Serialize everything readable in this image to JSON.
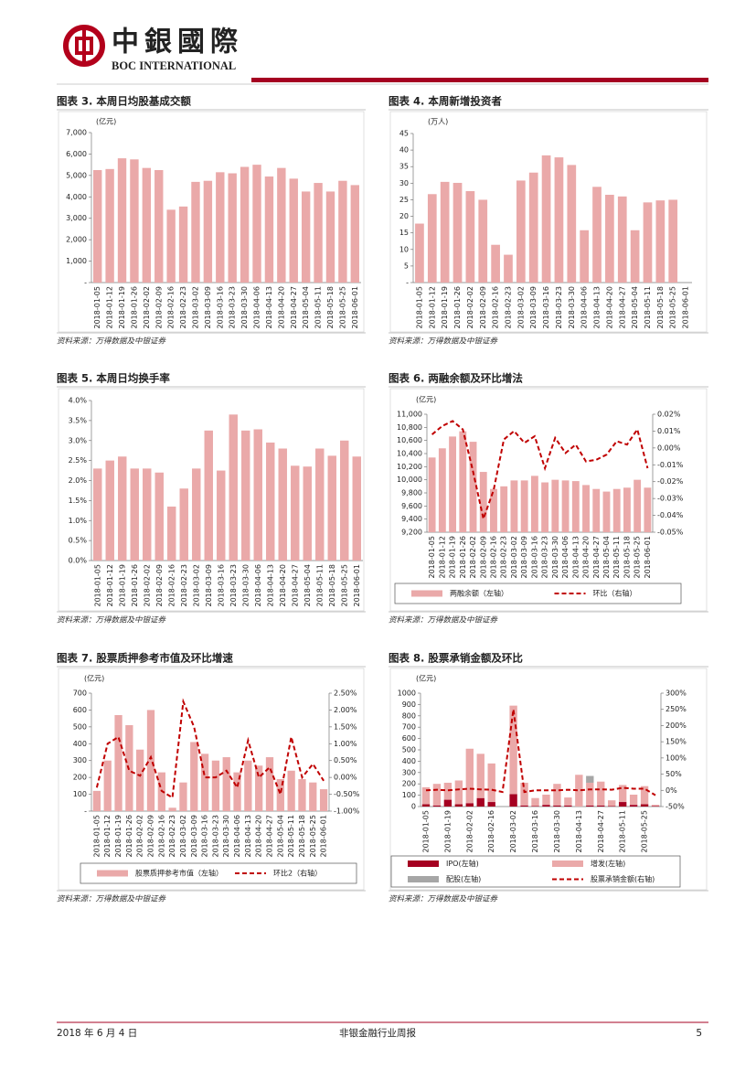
{
  "header": {
    "logo_cn": "中銀國際",
    "logo_en": "BOC INTERNATIONAL"
  },
  "chart_data": [
    {
      "type": "bar",
      "title": "图表 3. 本周日均股基成交额",
      "y_label": "(亿元)",
      "source": "资料来源：万得数据及中银证券",
      "categories": [
        "2018-01-05",
        "2018-01-12",
        "2018-01-19",
        "2018-01-26",
        "2018-02-02",
        "2018-02-09",
        "2018-02-16",
        "2018-02-23",
        "2018-03-02",
        "2018-03-09",
        "2018-03-16",
        "2018-03-23",
        "2018-03-30",
        "2018-04-06",
        "2018-04-13",
        "2018-04-20",
        "2018-04-27",
        "2018-05-04",
        "2018-05-11",
        "2018-05-18",
        "2018-05-25",
        "2018-06-01"
      ],
      "values": [
        5250,
        5300,
        5800,
        5750,
        5350,
        5250,
        3400,
        3550,
        4700,
        4750,
        5150,
        5100,
        5400,
        5500,
        4950,
        5350,
        4850,
        4250,
        4650,
        4250,
        4750,
        4550
      ],
      "color": "#eaa9a9",
      "ylim": [
        0,
        7000
      ],
      "yticks": [
        {
          "value": 0,
          "label": "-"
        },
        {
          "value": 1000,
          "label": "1,000"
        },
        {
          "value": 2000,
          "label": "2,000"
        },
        {
          "value": 3000,
          "label": "3,000"
        },
        {
          "value": 4000,
          "label": "4,000"
        },
        {
          "value": 5000,
          "label": "5,000"
        },
        {
          "value": 6000,
          "label": "6,000"
        },
        {
          "value": 7000,
          "label": "7,000"
        }
      ]
    },
    {
      "type": "bar",
      "title": "图表 4. 本周新增投资者",
      "y_label": "(万人)",
      "source": "资料来源：万得数据及中银证券",
      "categories": [
        "2018-01-05",
        "2018-01-12",
        "2018-01-19",
        "2018-01-26",
        "2018-02-02",
        "2018-02-09",
        "2018-02-16",
        "2018-02-23",
        "2018-03-02",
        "2018-03-09",
        "2018-03-16",
        "2018-03-23",
        "2018-03-30",
        "2018-04-06",
        "2018-04-13",
        "2018-04-20",
        "2018-04-27",
        "2018-05-04",
        "2018-05-11",
        "2018-05-18",
        "2018-05-25",
        "2018-06-01"
      ],
      "values": [
        17.8,
        26.7,
        30.4,
        30.1,
        27.6,
        25.0,
        11.4,
        8.4,
        30.8,
        33.2,
        38.4,
        37.8,
        35.5,
        15.8,
        28.9,
        26.5,
        26.0,
        15.8,
        24.2,
        24.8,
        25.0,
        null
      ],
      "color": "#eaa9a9",
      "ylim": [
        0,
        45
      ],
      "yticks": [
        {
          "value": 0,
          "label": "-"
        },
        5,
        10,
        15,
        20,
        25,
        30,
        35,
        40,
        45
      ]
    },
    {
      "type": "bar",
      "title": "图表 5. 本周日均换手率",
      "source": "资料来源：万得数据及中银证券",
      "categories": [
        "2018-01-05",
        "2018-01-12",
        "2018-01-19",
        "2018-01-26",
        "2018-02-02",
        "2018-02-09",
        "2018-02-16",
        "2018-02-23",
        "2018-03-02",
        "2018-03-09",
        "2018-03-16",
        "2018-03-23",
        "2018-03-30",
        "2018-04-06",
        "2018-04-13",
        "2018-04-20",
        "2018-04-27",
        "2018-05-04",
        "2018-05-11",
        "2018-05-18",
        "2018-05-25",
        "2018-06-01"
      ],
      "values": [
        2.3,
        2.5,
        2.6,
        2.3,
        2.3,
        2.2,
        1.35,
        1.8,
        2.3,
        3.25,
        2.25,
        3.65,
        3.25,
        3.28,
        2.95,
        2.8,
        2.37,
        2.35,
        2.8,
        2.62,
        3.0,
        2.6
      ],
      "color": "#eaa9a9",
      "ylim": [
        0,
        4
      ],
      "yticks": [
        {
          "value": 0,
          "label": "0.0%"
        },
        {
          "value": 0.5,
          "label": "0.5%"
        },
        {
          "value": 1,
          "label": "1.0%"
        },
        {
          "value": 1.5,
          "label": "1.5%"
        },
        {
          "value": 2,
          "label": "2.0%"
        },
        {
          "value": 2.5,
          "label": "2.5%"
        },
        {
          "value": 3,
          "label": "3.0%"
        },
        {
          "value": 3.5,
          "label": "3.5%"
        },
        {
          "value": 4,
          "label": "4.0%"
        }
      ]
    },
    {
      "type": "combo",
      "title": "图表 6. 两融余额及环比增法",
      "y_label": "(亿元)",
      "source": "资料来源：万得数据及中银证券",
      "legend": true,
      "categories": [
        "2018-01-05",
        "2018-01-12",
        "2018-01-19",
        "2018-01-26",
        "2018-02-02",
        "2018-02-09",
        "2018-02-16",
        "2018-02-23",
        "2018-03-02",
        "2018-03-09",
        "2018-03-16",
        "2018-03-23",
        "2018-03-30",
        "2018-04-06",
        "2018-04-13",
        "2018-04-20",
        "2018-04-27",
        "2018-05-04",
        "2018-05-11",
        "2018-05-18",
        "2018-05-25",
        "2018-06-01"
      ],
      "series": [
        {
          "name": "两融余额（左轴）",
          "color": "#eaa9a9",
          "kind": "bar",
          "values": [
            10340,
            10480,
            10660,
            10740,
            10580,
            10120,
            9860,
            9900,
            9990,
            9990,
            10060,
            9960,
            10000,
            9990,
            9980,
            9920,
            9860,
            9820,
            9860,
            9880,
            10000,
            9880
          ]
        },
        {
          "name": "环比（右轴）",
          "color": "#c00000",
          "kind": "line",
          "axis": "y2",
          "values": [
            0.008,
            0.013,
            0.016,
            0.011,
            -0.014,
            -0.042,
            -0.025,
            0.005,
            0.01,
            0.003,
            0.007,
            -0.012,
            0.006,
            -0.003,
            0.002,
            -0.008,
            -0.007,
            -0.004,
            0.004,
            0.002,
            0.011,
            -0.012
          ]
        }
      ],
      "ylim": [
        9200,
        11000
      ],
      "yticks": [
        {
          "value": 9200,
          "label": "9,200"
        },
        {
          "value": 9400,
          "label": "9,400"
        },
        {
          "value": 9600,
          "label": "9,600"
        },
        {
          "value": 9800,
          "label": "9,800"
        },
        {
          "value": 10000,
          "label": "10,000"
        },
        {
          "value": 10200,
          "label": "10,200"
        },
        {
          "value": 10400,
          "label": "10,400"
        },
        {
          "value": 10600,
          "label": "10,600"
        },
        {
          "value": 10800,
          "label": "10,800"
        },
        {
          "value": 11000,
          "label": "11,000"
        }
      ],
      "y2lim": [
        -0.05,
        0.02
      ],
      "y2ticks": [
        {
          "value": -0.05,
          "label": "-0.05%"
        },
        {
          "value": -0.04,
          "label": "-0.04%"
        },
        {
          "value": -0.03,
          "label": "-0.03%"
        },
        {
          "value": -0.02,
          "label": "-0.02%"
        },
        {
          "value": -0.01,
          "label": "-0.01%"
        },
        {
          "value": 0,
          "label": "0.00%"
        },
        {
          "value": 0.01,
          "label": "0.01%"
        },
        {
          "value": 0.02,
          "label": "0.02%"
        }
      ]
    },
    {
      "type": "combo",
      "title": "图表 7. 股票质押参考市值及环比增速",
      "y_label": "(亿元)",
      "source": "资料来源：万得数据及中银证券",
      "legend": true,
      "categories": [
        "2018-01-05",
        "2018-01-12",
        "2018-01-19",
        "2018-01-26",
        "2018-02-02",
        "2018-02-09",
        "2018-02-16",
        "2018-02-23",
        "2018-03-02",
        "2018-03-09",
        "2018-03-16",
        "2018-03-23",
        "2018-03-30",
        "2018-04-06",
        "2018-04-13",
        "2018-04-20",
        "2018-04-27",
        "2018-05-04",
        "2018-05-11",
        "2018-05-18",
        "2018-05-25",
        "2018-06-01"
      ],
      "series": [
        {
          "name": "股票质押参考市值（左轴）",
          "color": "#eaa9a9",
          "kind": "bar",
          "values": [
            120,
            300,
            570,
            510,
            365,
            600,
            230,
            20,
            170,
            410,
            340,
            300,
            320,
            230,
            300,
            270,
            320,
            190,
            240,
            190,
            170,
            130
          ]
        },
        {
          "name": "环比2（右轴）",
          "color": "#c00000",
          "kind": "line",
          "axis": "y2",
          "values": [
            -0.3,
            1.0,
            1.2,
            0.2,
            0.05,
            0.6,
            -0.4,
            -0.6,
            2.25,
            1.5,
            0.0,
            0.0,
            0.2,
            -0.3,
            1.1,
            0.0,
            0.3,
            -0.5,
            1.2,
            0.0,
            0.4,
            -0.1
          ]
        }
      ],
      "ylim": [
        0,
        700
      ],
      "yticks": [
        {
          "value": 0,
          "label": "-"
        },
        100,
        200,
        300,
        400,
        500,
        600,
        700
      ],
      "y2lim": [
        -1,
        2.5
      ],
      "y2ticks": [
        {
          "value": -1,
          "label": "-1.00%"
        },
        {
          "value": -0.5,
          "label": "-0.50%"
        },
        {
          "value": 0,
          "label": "0.00%"
        },
        {
          "value": 0.5,
          "label": "0.50%"
        },
        {
          "value": 1,
          "label": "1.00%"
        },
        {
          "value": 1.5,
          "label": "1.50%"
        },
        {
          "value": 2,
          "label": "2.00%"
        },
        {
          "value": 2.5,
          "label": "2.50%"
        }
      ]
    },
    {
      "type": "combo",
      "title": "图表 8. 股票承销金额及环比",
      "y_label": "(亿元)",
      "source": "资料来源：万得数据及中银证券",
      "legend": true,
      "stacked": true,
      "categories": [
        "2018-01-05",
        null,
        "2018-01-19",
        null,
        "2018-02-02",
        null,
        "2018-02-16",
        null,
        "2018-03-02",
        null,
        "2018-03-16",
        null,
        "2018-03-30",
        null,
        "2018-04-13",
        null,
        "2018-04-27",
        null,
        "2018-05-11",
        null,
        "2018-05-25",
        null
      ],
      "series": [
        {
          "name": "IPO(左轴)",
          "color": "#a50021",
          "kind": "bar",
          "values": [
            20,
            10,
            60,
            20,
            30,
            75,
            40,
            0,
            110,
            10,
            5,
            15,
            10,
            10,
            0,
            10,
            10,
            5,
            40,
            15,
            20,
            5
          ]
        },
        {
          "name": "增发(左轴)",
          "color": "#eaa9a9",
          "kind": "bar",
          "values": [
            150,
            190,
            150,
            210,
            480,
            390,
            340,
            0,
            780,
            200,
            70,
            90,
            190,
            70,
            280,
            200,
            210,
            50,
            150,
            90,
            160,
            10
          ]
        },
        {
          "name": "配股(左轴)",
          "color": "#a6a6a6",
          "kind": "bar",
          "values": [
            0,
            0,
            0,
            0,
            0,
            0,
            0,
            0,
            0,
            0,
            0,
            0,
            0,
            0,
            0,
            60,
            0,
            0,
            0,
            0,
            0,
            0
          ]
        },
        {
          "name": "股票承销金额(右轴)",
          "color": "#c00000",
          "kind": "line",
          "axis": "y2",
          "values": [
            0,
            2,
            0,
            3,
            5,
            3,
            2,
            -5,
            250,
            -5,
            0,
            0,
            0,
            2,
            0,
            3,
            3,
            2,
            8,
            5,
            5,
            -15
          ]
        }
      ],
      "ylim": [
        0,
        1000
      ],
      "yticks": [
        0,
        100,
        200,
        300,
        400,
        500,
        600,
        700,
        800,
        900,
        1000
      ],
      "y2lim": [
        -50,
        300
      ],
      "y2ticks": [
        {
          "value": -50,
          "label": "-50%"
        },
        {
          "value": 0,
          "label": "0%"
        },
        {
          "value": 50,
          "label": "50%"
        },
        {
          "value": 100,
          "label": "100%"
        },
        {
          "value": 150,
          "label": "150%"
        },
        {
          "value": 200,
          "label": "200%"
        },
        {
          "value": 250,
          "label": "250%"
        },
        {
          "value": 300,
          "label": "300%"
        }
      ]
    }
  ],
  "footer": {
    "date": "2018 年 6 月 4 日",
    "report": "非银金融行业周报",
    "page": "5"
  }
}
